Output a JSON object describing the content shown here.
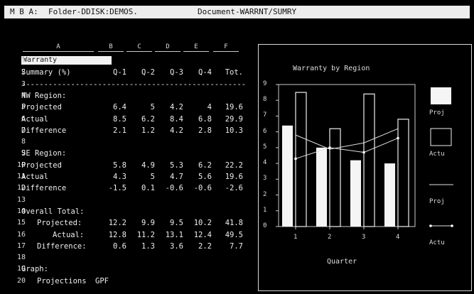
{
  "titlebar": {
    "prefix": "M B A:",
    "folder": "Folder-DDISK:DEMOS.",
    "document": "Document-WARRNT/SUMRY"
  },
  "sheet": {
    "columns": [
      "A",
      "B",
      "C",
      "D",
      "E",
      "F"
    ],
    "cell_editor": "Warranty",
    "rows": [
      {
        "n": "1",
        "label": "Warranty",
        "indent": 0,
        "values": []
      },
      {
        "n": "2",
        "label": "Summary (%)",
        "indent": 0,
        "values": [
          "Q-1",
          "Q-2",
          "Q-3",
          "Q-4",
          "Tot."
        ]
      },
      {
        "n": "3",
        "label": "--------------------------------------------------",
        "indent": 0,
        "values": []
      },
      {
        "n": "4",
        "label": "NW Region:",
        "indent": 0,
        "values": []
      },
      {
        "n": "5",
        "label": "Projected",
        "indent": 0,
        "values": [
          "6.4",
          "5",
          "4.2",
          "4",
          "19.6"
        ]
      },
      {
        "n": "6",
        "label": "Actual",
        "indent": 0,
        "values": [
          "8.5",
          "6.2",
          "8.4",
          "6.8",
          "29.9"
        ]
      },
      {
        "n": "7",
        "label": "Difference",
        "indent": 0,
        "values": [
          "2.1",
          "1.2",
          "4.2",
          "2.8",
          "10.3"
        ]
      },
      {
        "n": "8",
        "label": "",
        "indent": 0,
        "values": []
      },
      {
        "n": "9",
        "label": "SE Region:",
        "indent": 0,
        "values": []
      },
      {
        "n": "10",
        "label": "Projected",
        "indent": 0,
        "values": [
          "5.8",
          "4.9",
          "5.3",
          "6.2",
          "22.2"
        ]
      },
      {
        "n": "11",
        "label": "Actual",
        "indent": 0,
        "values": [
          "4.3",
          "5",
          "4.7",
          "5.6",
          "19.6"
        ]
      },
      {
        "n": "12",
        "label": "Difference",
        "indent": 0,
        "values": [
          "-1.5",
          "0.1",
          "-0.6",
          "-0.6",
          "-2.6"
        ]
      },
      {
        "n": "13",
        "label": "",
        "indent": 0,
        "values": []
      },
      {
        "n": "14",
        "label": "Overall Total:",
        "indent": 0,
        "values": []
      },
      {
        "n": "15",
        "label": "Projected:",
        "indent": 1,
        "values": [
          "12.2",
          "9.9",
          "9.5",
          "10.2",
          "41.8"
        ]
      },
      {
        "n": "16",
        "label": "Actual:",
        "indent": 2,
        "values": [
          "12.8",
          "11.2",
          "13.1",
          "12.4",
          "49.5"
        ]
      },
      {
        "n": "17",
        "label": "Difference:",
        "indent": 1,
        "values": [
          "0.6",
          "1.3",
          "3.6",
          "2.2",
          "7.7"
        ]
      },
      {
        "n": "18",
        "label": "",
        "indent": 0,
        "values": []
      },
      {
        "n": "19",
        "label": "Graph:",
        "indent": 0,
        "values": []
      },
      {
        "n": "20",
        "label": "Projections",
        "indent": 1,
        "values": [
          "GPF"
        ]
      }
    ]
  },
  "chart_data": {
    "type": "bar",
    "title": "Warranty by Region",
    "xlabel": "Quarter",
    "ylabel": "",
    "categories": [
      "1",
      "2",
      "3",
      "4"
    ],
    "ylim": [
      0,
      9
    ],
    "yticks": [
      "0",
      "1",
      "2",
      "3",
      "4",
      "5",
      "6",
      "7",
      "8",
      "9"
    ],
    "series": [
      {
        "name": "Proj",
        "kind": "bar",
        "fill": "solid",
        "values": [
          6.4,
          5,
          4.2,
          4
        ]
      },
      {
        "name": "Actu",
        "kind": "bar",
        "fill": "outline",
        "values": [
          8.5,
          6.2,
          8.4,
          6.8
        ]
      },
      {
        "name": "Proj",
        "kind": "line",
        "marker": "none",
        "values": [
          5.8,
          4.9,
          5.3,
          6.2
        ]
      },
      {
        "name": "Actu",
        "kind": "line",
        "marker": "dot",
        "values": [
          4.3,
          5,
          4.7,
          5.6
        ]
      }
    ],
    "legend_position": "right",
    "colors": {
      "foreground": "#ffffff",
      "background": "#000000"
    }
  }
}
